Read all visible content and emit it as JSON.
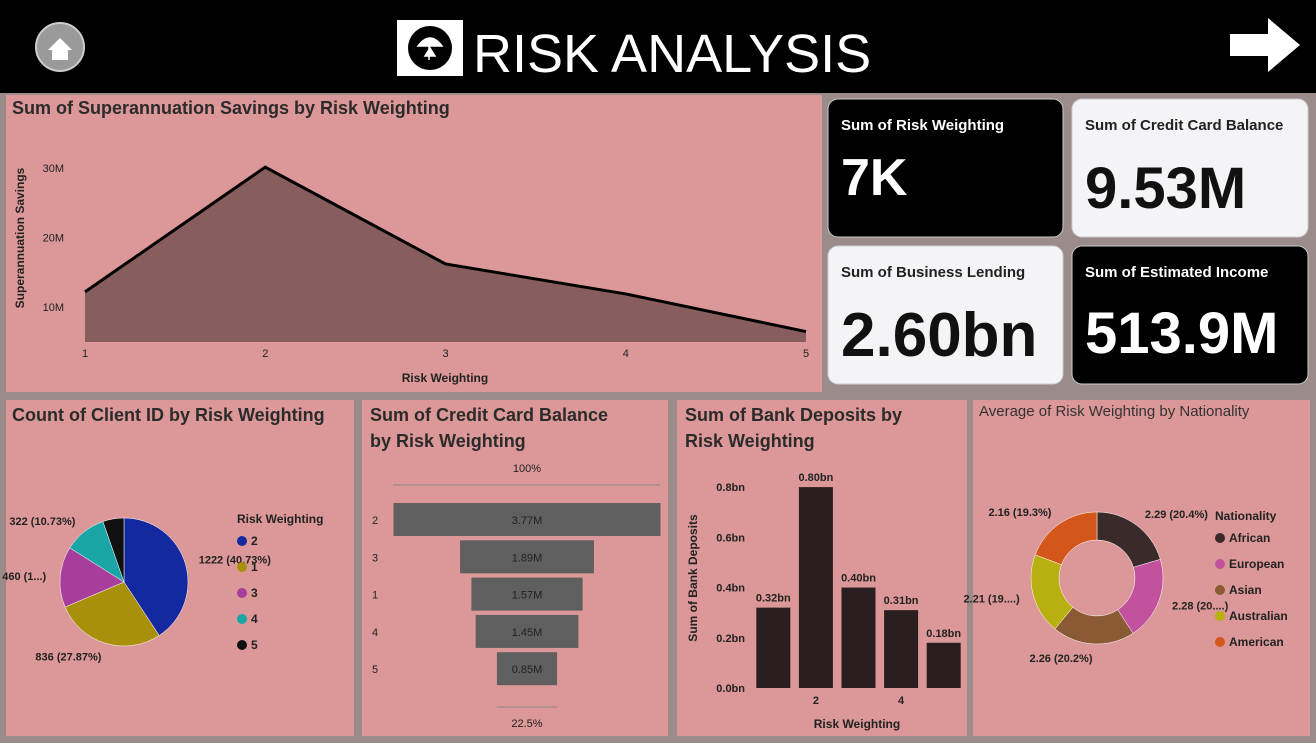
{
  "header": {
    "title": "RISK ANALYSIS"
  },
  "cards": [
    {
      "label": "Sum of Risk Weighting",
      "value": "7K"
    },
    {
      "label": "Sum of Credit Card Balance",
      "value": "9.53M"
    },
    {
      "label": "Sum of Business Lending",
      "value": "2.60bn"
    },
    {
      "label": "Sum of Estimated Income",
      "value": "513.9M"
    }
  ],
  "chart_data": [
    {
      "type": "area",
      "title": "Sum of Superannuation Savings by Risk Weighting",
      "x_label": "Risk Weighting",
      "y_label": "Superannuation Savings",
      "x": [
        1,
        2,
        3,
        4,
        5
      ],
      "values": [
        12200000,
        30100000,
        16200000,
        11900000,
        6500000
      ],
      "color": "#6b4a4a",
      "xlim": [
        1,
        5
      ],
      "xticks": [
        1,
        2,
        3,
        4,
        5
      ],
      "ylim": [
        5000000,
        34000000
      ],
      "yticks": [
        {
          "value": 10000000,
          "label": "10M"
        },
        {
          "value": 20000000,
          "label": "20M"
        },
        {
          "value": 30000000,
          "label": "30M"
        }
      ]
    },
    {
      "type": "pie",
      "title": "Count of Client ID by Risk Weighting",
      "legend_title": "Risk Weighting",
      "categories": [
        "2",
        "1",
        "3",
        "4",
        "5"
      ],
      "values": [
        1222,
        836,
        460,
        322,
        160
      ],
      "value_labels": [
        "1222 (40.73%)",
        "836 (27.87%)",
        "460 (1...)",
        "322 (10.73%)",
        null
      ],
      "colors": [
        "#1428a0",
        "#a8900a",
        "#a83e9c",
        "#1aa6a6",
        "#111111"
      ]
    },
    {
      "type": "funnel",
      "title": "Sum of Credit Card Balance by Risk Weighting",
      "categories": [
        "2",
        "3",
        "1",
        "4",
        "5"
      ],
      "values": [
        3770000,
        1890000,
        1570000,
        1450000,
        850000
      ],
      "value_labels": [
        "3.77M",
        "1.89M",
        "1.57M",
        "1.45M",
        "0.85M"
      ],
      "top_label": "100%",
      "bottom_label": "22.5%",
      "color": "#5f5f5f"
    },
    {
      "type": "bar",
      "title": "Sum of Bank Deposits by Risk Weighting",
      "x_label": "Risk Weighting",
      "y_label": "Sum of Bank Deposits",
      "categories": [
        null,
        "2",
        null,
        "4",
        null
      ],
      "values": [
        320000000,
        800000000,
        400000000,
        310000000,
        180000000
      ],
      "value_labels": [
        "0.32bn",
        "0.80bn",
        "0.40bn",
        "0.31bn",
        "0.18bn"
      ],
      "color": "#2a1e1e",
      "ylim": [
        0,
        900000000
      ],
      "yticks": [
        {
          "value": 0,
          "label": "0.0bn"
        },
        {
          "value": 200000000,
          "label": "0.2bn"
        },
        {
          "value": 400000000,
          "label": "0.4bn"
        },
        {
          "value": 600000000,
          "label": "0.6bn"
        },
        {
          "value": 800000000,
          "label": "0.8bn"
        }
      ]
    },
    {
      "type": "donut",
      "title": "Average of Risk Weighting by Nationality",
      "legend_title": "Nationality",
      "categories": [
        "African",
        "European",
        "Asian",
        "Australian",
        "American"
      ],
      "values": [
        2.29,
        2.28,
        2.26,
        2.21,
        2.16
      ],
      "value_labels": [
        "2.29 (20.4%)",
        "2.28 (20....)",
        "2.26 (20.2%)",
        "2.21 (19....)",
        "2.16 (19.3%)"
      ],
      "colors": [
        "#3a2a2a",
        "#c2519e",
        "#8a5a35",
        "#b8b010",
        "#d4561a"
      ]
    }
  ]
}
